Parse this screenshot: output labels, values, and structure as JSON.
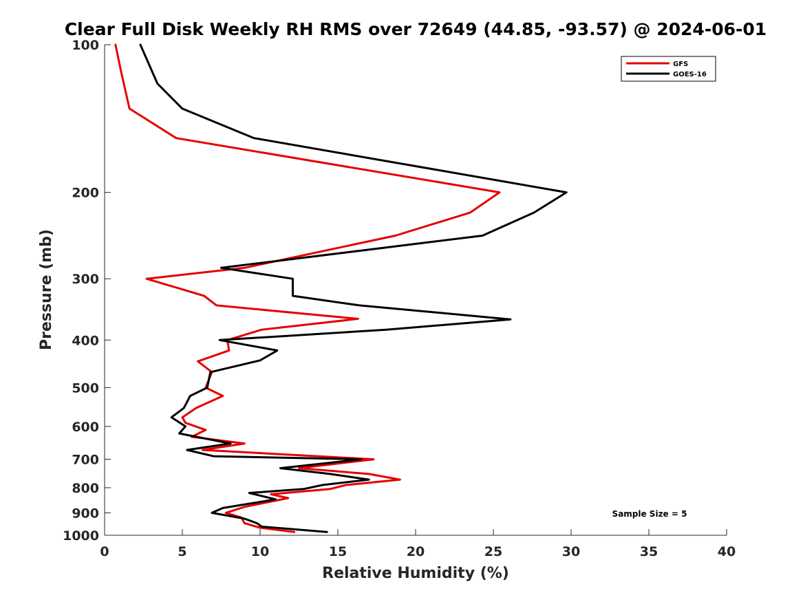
{
  "chart_data": {
    "type": "line",
    "title": "Clear Full Disk Weekly RH RMS over 72649 (44.85, -93.57) @ 2024-06-01",
    "xlabel": "Relative Humidity (%)",
    "ylabel": "Pressure (mb)",
    "xlim": [
      0,
      40
    ],
    "ylim": [
      100,
      1000
    ],
    "yscale": "log",
    "y_reversed": true,
    "grid": false,
    "legend_position": "top-right",
    "x_ticks": [
      "0",
      "5",
      "10",
      "15",
      "20",
      "25",
      "30",
      "35",
      "40"
    ],
    "y_ticks": [
      "100",
      "200",
      "300",
      "400",
      "500",
      "600",
      "700",
      "800",
      "900",
      "1000"
    ],
    "series": [
      {
        "name": "GFS",
        "color": "#e60000",
        "points": [
          [
            0.7,
            100
          ],
          [
            1.1,
            115
          ],
          [
            1.6,
            135
          ],
          [
            4.6,
            155
          ],
          [
            25.4,
            200
          ],
          [
            23.5,
            220
          ],
          [
            18.7,
            245
          ],
          [
            9.0,
            285
          ],
          [
            2.7,
            300
          ],
          [
            6.4,
            325
          ],
          [
            7.2,
            340
          ],
          [
            16.3,
            362
          ],
          [
            10.1,
            381
          ],
          [
            7.9,
            400
          ],
          [
            8.0,
            420
          ],
          [
            6.0,
            442
          ],
          [
            6.9,
            465
          ],
          [
            6.5,
            500
          ],
          [
            7.6,
            520
          ],
          [
            5.9,
            550
          ],
          [
            5.0,
            575
          ],
          [
            5.2,
            590
          ],
          [
            6.5,
            610
          ],
          [
            5.6,
            630
          ],
          [
            9.0,
            650
          ],
          [
            6.3,
            670
          ],
          [
            17.3,
            700
          ],
          [
            12.5,
            730
          ],
          [
            17.0,
            750
          ],
          [
            19.0,
            770
          ],
          [
            15.5,
            790
          ],
          [
            14.5,
            805
          ],
          [
            10.7,
            825
          ],
          [
            11.8,
            840
          ],
          [
            9.0,
            875
          ],
          [
            7.8,
            900
          ],
          [
            8.8,
            920
          ],
          [
            9.0,
            945
          ],
          [
            10.0,
            965
          ],
          [
            12.2,
            985
          ]
        ]
      },
      {
        "name": "GOES-16",
        "color": "#000000",
        "points": [
          [
            2.3,
            100
          ],
          [
            3.4,
            120
          ],
          [
            5.0,
            135
          ],
          [
            9.6,
            155
          ],
          [
            29.7,
            200
          ],
          [
            27.6,
            220
          ],
          [
            24.3,
            245
          ],
          [
            7.5,
            285
          ],
          [
            12.1,
            300
          ],
          [
            12.1,
            325
          ],
          [
            16.4,
            340
          ],
          [
            26.1,
            363
          ],
          [
            18.1,
            381
          ],
          [
            7.4,
            400
          ],
          [
            11.1,
            420
          ],
          [
            10.0,
            440
          ],
          [
            6.8,
            465
          ],
          [
            6.6,
            500
          ],
          [
            5.5,
            520
          ],
          [
            5.1,
            550
          ],
          [
            4.3,
            575
          ],
          [
            5.2,
            600
          ],
          [
            4.8,
            620
          ],
          [
            8.1,
            650
          ],
          [
            5.3,
            670
          ],
          [
            7.0,
            690
          ],
          [
            16.5,
            700
          ],
          [
            11.3,
            730
          ],
          [
            14.5,
            750
          ],
          [
            17.0,
            770
          ],
          [
            14.0,
            790
          ],
          [
            12.8,
            805
          ],
          [
            9.3,
            820
          ],
          [
            11.0,
            845
          ],
          [
            7.6,
            880
          ],
          [
            6.9,
            900
          ],
          [
            9.0,
            925
          ],
          [
            9.8,
            945
          ],
          [
            10.1,
            960
          ],
          [
            14.3,
            985
          ]
        ]
      }
    ],
    "annotations": [
      "Sample Size = 5"
    ]
  }
}
